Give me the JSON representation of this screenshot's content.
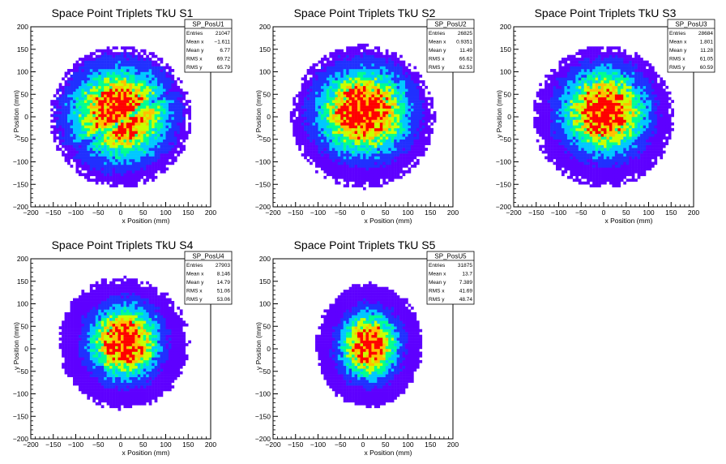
{
  "colors": {
    "palette": [
      "#ffffff",
      "#5e00ff",
      "#2030ff",
      "#00c8ff",
      "#00ff90",
      "#c8ff00",
      "#ffc000",
      "#ff0000"
    ]
  },
  "chart_data": [
    {
      "type": "heatmap",
      "title": "Space Point Triplets TkU S1",
      "xlabel": "x Position (mm)",
      "ylabel": "y Position (mm)",
      "xlim": [
        -200,
        200
      ],
      "ylim": [
        -200,
        200
      ],
      "xticks": [
        "−200",
        "−150",
        "−100",
        "−50",
        "0",
        "50",
        "100",
        "150",
        "200"
      ],
      "yticks": [
        "−200",
        "−150",
        "−100",
        "−50",
        "0",
        "50",
        "100",
        "150",
        "200"
      ],
      "grid": false,
      "stats": {
        "name": "SP_PosU1",
        "rows": [
          {
            "label": "Entries",
            "value": "21047"
          },
          {
            "label": "Mean x",
            "value": "−1.611"
          },
          {
            "label": "Mean y",
            "value": "6.77"
          },
          {
            "label": "RMS x",
            "value": "69.72"
          },
          {
            "label": "RMS y",
            "value": "65.79"
          }
        ]
      },
      "distribution": {
        "center": [
          -1.6,
          6.8
        ],
        "spread": [
          70,
          66
        ],
        "radius": 158,
        "gap_band": true
      }
    },
    {
      "type": "heatmap",
      "title": "Space Point Triplets TkU S2",
      "xlabel": "x Position (mm)",
      "ylabel": "y Position (mm)",
      "xlim": [
        -200,
        200
      ],
      "ylim": [
        -200,
        200
      ],
      "xticks": [
        "−200",
        "−150",
        "−100",
        "−50",
        "0",
        "50",
        "100",
        "150",
        "200"
      ],
      "yticks": [
        "−200",
        "−150",
        "−100",
        "−50",
        "0",
        "50",
        "100",
        "150",
        "200"
      ],
      "grid": false,
      "stats": {
        "name": "SP_PosU2",
        "rows": [
          {
            "label": "Entries",
            "value": "26825"
          },
          {
            "label": "Mean x",
            "value": "0.9351"
          },
          {
            "label": "Mean y",
            "value": "11.49"
          },
          {
            "label": "RMS x",
            "value": "66.62"
          },
          {
            "label": "RMS y",
            "value": "62.53"
          }
        ]
      },
      "distribution": {
        "center": [
          1,
          11.5
        ],
        "spread": [
          67,
          63
        ],
        "radius": 160,
        "gap_band": false
      }
    },
    {
      "type": "heatmap",
      "title": "Space Point Triplets TkU S3",
      "xlabel": "x Position (mm)",
      "ylabel": "y Position (mm)",
      "xlim": [
        -200,
        200
      ],
      "ylim": [
        -200,
        200
      ],
      "xticks": [
        "−200",
        "−150",
        "−100",
        "−50",
        "0",
        "50",
        "100",
        "150",
        "200"
      ],
      "yticks": [
        "−200",
        "−150",
        "−100",
        "−50",
        "0",
        "50",
        "100",
        "150",
        "200"
      ],
      "grid": false,
      "stats": {
        "name": "SP_PosU3",
        "rows": [
          {
            "label": "Entries",
            "value": "28684"
          },
          {
            "label": "Mean x",
            "value": "1.801"
          },
          {
            "label": "Mean y",
            "value": "11.28"
          },
          {
            "label": "RMS x",
            "value": "61.05"
          },
          {
            "label": "RMS y",
            "value": "60.59"
          }
        ]
      },
      "distribution": {
        "center": [
          1.8,
          11.3
        ],
        "spread": [
          61,
          61
        ],
        "radius": 158,
        "gap_band": false
      }
    },
    {
      "type": "heatmap",
      "title": "Space Point Triplets TkU S4",
      "xlabel": "x Position (mm)",
      "ylabel": "y Position (mm)",
      "xlim": [
        -200,
        200
      ],
      "ylim": [
        -200,
        200
      ],
      "xticks": [
        "−200",
        "−150",
        "−100",
        "−50",
        "0",
        "50",
        "100",
        "150",
        "200"
      ],
      "yticks": [
        "−200",
        "−150",
        "−100",
        "−50",
        "0",
        "50",
        "100",
        "150",
        "200"
      ],
      "grid": false,
      "stats": {
        "name": "SP_PosU4",
        "rows": [
          {
            "label": "Entries",
            "value": "27903"
          },
          {
            "label": "Mean x",
            "value": "8.146"
          },
          {
            "label": "Mean y",
            "value": "14.79"
          },
          {
            "label": "RMS x",
            "value": "51.06"
          },
          {
            "label": "RMS y",
            "value": "53.06"
          }
        ]
      },
      "distribution": {
        "center": [
          8,
          15
        ],
        "spread": [
          51,
          53
        ],
        "radius": 160,
        "gap_band": false
      }
    },
    {
      "type": "heatmap",
      "title": "Space Point Triplets TkU S5",
      "xlabel": "x Position (mm)",
      "ylabel": "y Position (mm)",
      "xlim": [
        -200,
        200
      ],
      "ylim": [
        -200,
        200
      ],
      "xticks": [
        "−200",
        "−150",
        "−100",
        "−50",
        "0",
        "50",
        "100",
        "150",
        "200"
      ],
      "yticks": [
        "−200",
        "−150",
        "−100",
        "−50",
        "0",
        "50",
        "100",
        "150",
        "200"
      ],
      "grid": false,
      "stats": {
        "name": "SP_PosU5",
        "rows": [
          {
            "label": "Entries",
            "value": "31875"
          },
          {
            "label": "Mean x",
            "value": "13.7"
          },
          {
            "label": "Mean y",
            "value": "7.389"
          },
          {
            "label": "RMS x",
            "value": "41.69"
          },
          {
            "label": "RMS y",
            "value": "48.74"
          }
        ]
      },
      "distribution": {
        "center": [
          14,
          7.4
        ],
        "spread": [
          42,
          49
        ],
        "radius": 160,
        "gap_band": false
      }
    }
  ]
}
